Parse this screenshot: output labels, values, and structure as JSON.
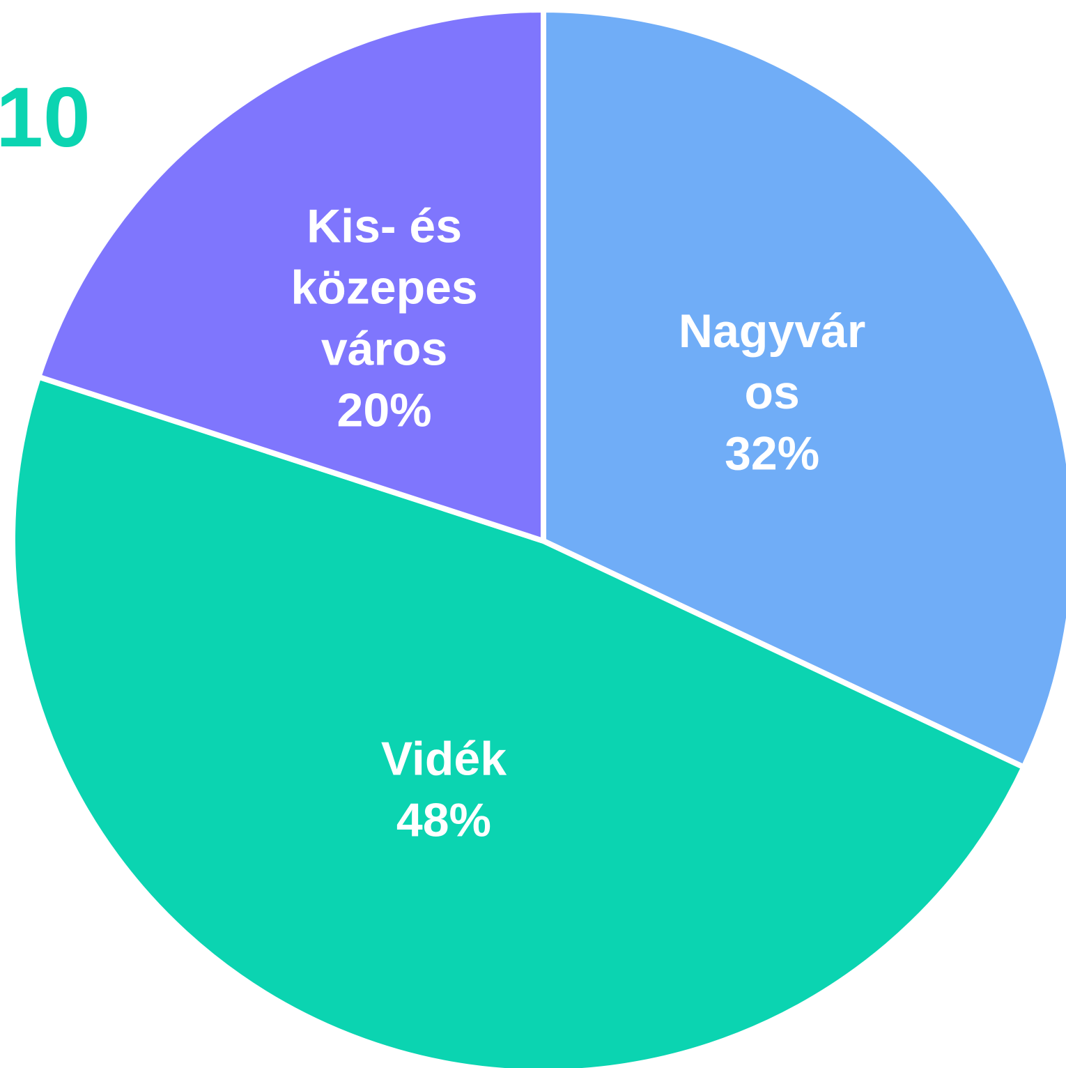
{
  "chart_data": {
    "type": "pie",
    "title": "10",
    "categories": [
      "Nagyváros",
      "Vidék",
      "Kis- és közepes város"
    ],
    "values": [
      32,
      48,
      20
    ],
    "value_labels": [
      "32%",
      "48%",
      "20%"
    ],
    "colors": [
      "#70adf7",
      "#0bd4b1",
      "#7f76fd"
    ],
    "title_color": "#0bd4b1"
  }
}
